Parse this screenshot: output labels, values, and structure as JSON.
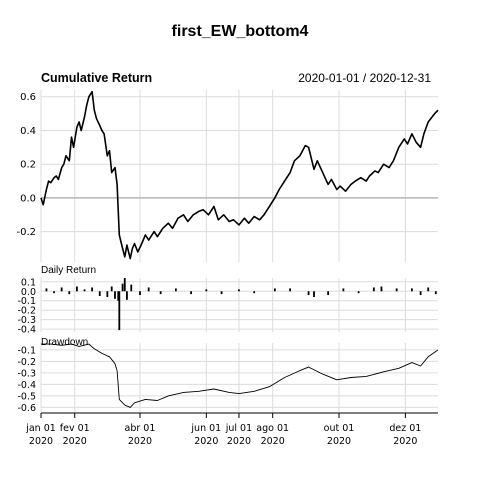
{
  "chart_data": {
    "type": "line",
    "title": "first_EW_bottom4",
    "period_label": "2020-01-01 / 2020-12-31",
    "x_ticks": [
      {
        "date": "2020-01-01",
        "month": "jan 01",
        "year": "2020"
      },
      {
        "date": "2020-02-01",
        "month": "fev 01",
        "year": "2020"
      },
      {
        "date": "2020-04-01",
        "month": "abr 01",
        "year": "2020"
      },
      {
        "date": "2020-06-01",
        "month": "jun 01",
        "year": "2020"
      },
      {
        "date": "2020-07-01",
        "month": "jul 01",
        "year": "2020"
      },
      {
        "date": "2020-08-01",
        "month": "ago 01",
        "year": "2020"
      },
      {
        "date": "2020-10-01",
        "month": "out 01",
        "year": "2020"
      },
      {
        "date": "2020-12-01",
        "month": "dez 01",
        "year": "2020"
      }
    ],
    "xlim": [
      "2020-01-01",
      "2020-12-31"
    ],
    "grid": true,
    "panels": [
      {
        "name": "Cumulative Return",
        "type": "line",
        "ylim": [
          -0.38,
          0.64
        ],
        "yticks": [
          0.6,
          0.4,
          0.2,
          0.0,
          -0.2
        ],
        "ytick_labels": [
          "0.6",
          "0.4",
          "0.2",
          "0.0",
          "-0.2"
        ],
        "series": [
          {
            "points": [
              [
                "2020-01-01",
                0.0
              ],
              [
                "2020-01-03",
                -0.04
              ],
              [
                "2020-01-06",
                0.05
              ],
              [
                "2020-01-08",
                0.1
              ],
              [
                "2020-01-10",
                0.09
              ],
              [
                "2020-01-13",
                0.12
              ],
              [
                "2020-01-15",
                0.13
              ],
              [
                "2020-01-17",
                0.11
              ],
              [
                "2020-01-20",
                0.18
              ],
              [
                "2020-01-22",
                0.2
              ],
              [
                "2020-01-24",
                0.25
              ],
              [
                "2020-01-27",
                0.22
              ],
              [
                "2020-01-29",
                0.36
              ],
              [
                "2020-01-31",
                0.3
              ],
              [
                "2020-02-03",
                0.42
              ],
              [
                "2020-02-05",
                0.45
              ],
              [
                "2020-02-07",
                0.4
              ],
              [
                "2020-02-10",
                0.48
              ],
              [
                "2020-02-12",
                0.55
              ],
              [
                "2020-02-14",
                0.6
              ],
              [
                "2020-02-17",
                0.63
              ],
              [
                "2020-02-19",
                0.52
              ],
              [
                "2020-02-21",
                0.47
              ],
              [
                "2020-02-24",
                0.43
              ],
              [
                "2020-02-26",
                0.4
              ],
              [
                "2020-02-28",
                0.38
              ],
              [
                "2020-03-02",
                0.25
              ],
              [
                "2020-03-04",
                0.28
              ],
              [
                "2020-03-06",
                0.15
              ],
              [
                "2020-03-09",
                0.18
              ],
              [
                "2020-03-11",
                0.08
              ],
              [
                "2020-03-13",
                -0.22
              ],
              [
                "2020-03-16",
                -0.3
              ],
              [
                "2020-03-18",
                -0.35
              ],
              [
                "2020-03-20",
                -0.28
              ],
              [
                "2020-03-23",
                -0.36
              ],
              [
                "2020-03-25",
                -0.3
              ],
              [
                "2020-03-27",
                -0.27
              ],
              [
                "2020-03-30",
                -0.32
              ],
              [
                "2020-04-02",
                -0.28
              ],
              [
                "2020-04-06",
                -0.22
              ],
              [
                "2020-04-09",
                -0.25
              ],
              [
                "2020-04-14",
                -0.2
              ],
              [
                "2020-04-17",
                -0.23
              ],
              [
                "2020-04-22",
                -0.18
              ],
              [
                "2020-04-27",
                -0.15
              ],
              [
                "2020-05-01",
                -0.18
              ],
              [
                "2020-05-06",
                -0.12
              ],
              [
                "2020-05-11",
                -0.1
              ],
              [
                "2020-05-15",
                -0.14
              ],
              [
                "2020-05-20",
                -0.1
              ],
              [
                "2020-05-25",
                -0.08
              ],
              [
                "2020-05-29",
                -0.07
              ],
              [
                "2020-06-03",
                -0.1
              ],
              [
                "2020-06-08",
                -0.05
              ],
              [
                "2020-06-12",
                -0.13
              ],
              [
                "2020-06-17",
                -0.1
              ],
              [
                "2020-06-22",
                -0.14
              ],
              [
                "2020-06-26",
                -0.13
              ],
              [
                "2020-07-01",
                -0.16
              ],
              [
                "2020-07-06",
                -0.12
              ],
              [
                "2020-07-10",
                -0.15
              ],
              [
                "2020-07-15",
                -0.11
              ],
              [
                "2020-07-20",
                -0.13
              ],
              [
                "2020-07-24",
                -0.1
              ],
              [
                "2020-07-29",
                -0.05
              ],
              [
                "2020-08-03",
                0.0
              ],
              [
                "2020-08-07",
                0.05
              ],
              [
                "2020-08-12",
                0.1
              ],
              [
                "2020-08-17",
                0.15
              ],
              [
                "2020-08-21",
                0.22
              ],
              [
                "2020-08-26",
                0.25
              ],
              [
                "2020-08-31",
                0.31
              ],
              [
                "2020-09-03",
                0.3
              ],
              [
                "2020-09-08",
                0.17
              ],
              [
                "2020-09-11",
                0.22
              ],
              [
                "2020-09-16",
                0.15
              ],
              [
                "2020-09-21",
                0.08
              ],
              [
                "2020-09-24",
                0.11
              ],
              [
                "2020-09-29",
                0.05
              ],
              [
                "2020-10-02",
                0.07
              ],
              [
                "2020-10-07",
                0.04
              ],
              [
                "2020-10-12",
                0.08
              ],
              [
                "2020-10-16",
                0.1
              ],
              [
                "2020-10-21",
                0.12
              ],
              [
                "2020-10-26",
                0.1
              ],
              [
                "2020-10-29",
                0.13
              ],
              [
                "2020-11-03",
                0.16
              ],
              [
                "2020-11-06",
                0.15
              ],
              [
                "2020-11-11",
                0.2
              ],
              [
                "2020-11-16",
                0.18
              ],
              [
                "2020-11-20",
                0.22
              ],
              [
                "2020-11-25",
                0.3
              ],
              [
                "2020-11-30",
                0.35
              ],
              [
                "2020-12-03",
                0.32
              ],
              [
                "2020-12-07",
                0.38
              ],
              [
                "2020-12-11",
                0.33
              ],
              [
                "2020-12-15",
                0.3
              ],
              [
                "2020-12-18",
                0.38
              ],
              [
                "2020-12-22",
                0.45
              ],
              [
                "2020-12-28",
                0.5
              ],
              [
                "2020-12-31",
                0.52
              ]
            ]
          }
        ]
      },
      {
        "name": "Daily Return",
        "type": "bar",
        "ylim": [
          -0.43,
          0.14
        ],
        "yticks": [
          0.1,
          0.0,
          -0.1,
          -0.2,
          -0.3,
          -0.4
        ],
        "ytick_labels": [
          "0.1",
          "0.0",
          "-0.1",
          "-0.2",
          "-0.3",
          "-0.4"
        ],
        "series": [
          {
            "points": [
              [
                "2020-01-06",
                0.03
              ],
              [
                "2020-01-13",
                -0.02
              ],
              [
                "2020-01-20",
                0.04
              ],
              [
                "2020-01-27",
                -0.03
              ],
              [
                "2020-02-03",
                0.05
              ],
              [
                "2020-02-10",
                0.02
              ],
              [
                "2020-02-17",
                0.04
              ],
              [
                "2020-02-24",
                -0.05
              ],
              [
                "2020-03-02",
                -0.06
              ],
              [
                "2020-03-06",
                0.05
              ],
              [
                "2020-03-09",
                -0.08
              ],
              [
                "2020-03-12",
                -0.1
              ],
              [
                "2020-03-13",
                -0.41
              ],
              [
                "2020-03-16",
                0.08
              ],
              [
                "2020-03-18",
                0.14
              ],
              [
                "2020-03-20",
                -0.09
              ],
              [
                "2020-03-24",
                0.07
              ],
              [
                "2020-04-01",
                -0.04
              ],
              [
                "2020-04-09",
                0.04
              ],
              [
                "2020-04-20",
                -0.03
              ],
              [
                "2020-05-04",
                0.03
              ],
              [
                "2020-05-18",
                -0.03
              ],
              [
                "2020-06-01",
                0.02
              ],
              [
                "2020-06-15",
                -0.03
              ],
              [
                "2020-07-01",
                0.02
              ],
              [
                "2020-07-15",
                -0.02
              ],
              [
                "2020-08-03",
                0.03
              ],
              [
                "2020-08-17",
                0.03
              ],
              [
                "2020-09-03",
                -0.04
              ],
              [
                "2020-09-08",
                -0.06
              ],
              [
                "2020-09-21",
                -0.04
              ],
              [
                "2020-10-05",
                0.03
              ],
              [
                "2020-10-19",
                -0.02
              ],
              [
                "2020-11-02",
                0.04
              ],
              [
                "2020-11-09",
                0.05
              ],
              [
                "2020-11-23",
                0.03
              ],
              [
                "2020-12-07",
                0.03
              ],
              [
                "2020-12-15",
                -0.04
              ],
              [
                "2020-12-22",
                0.04
              ],
              [
                "2020-12-29",
                -0.03
              ]
            ]
          }
        ]
      },
      {
        "name": "Drawdown",
        "type": "line",
        "ylim": [
          -0.64,
          -0.04
        ],
        "yticks": [
          -0.1,
          -0.2,
          -0.3,
          -0.4,
          -0.5,
          -0.6
        ],
        "ytick_labels": [
          "-0.1",
          "-0.2",
          "-0.3",
          "-0.4",
          "-0.5",
          "-0.6"
        ],
        "series": [
          {
            "points": [
              [
                "2020-01-01",
                -0.05
              ],
              [
                "2020-01-10",
                -0.05
              ],
              [
                "2020-01-20",
                -0.06
              ],
              [
                "2020-01-29",
                -0.05
              ],
              [
                "2020-02-05",
                -0.07
              ],
              [
                "2020-02-14",
                -0.05
              ],
              [
                "2020-02-19",
                -0.09
              ],
              [
                "2020-02-26",
                -0.13
              ],
              [
                "2020-03-04",
                -0.16
              ],
              [
                "2020-03-09",
                -0.22
              ],
              [
                "2020-03-11",
                -0.28
              ],
              [
                "2020-03-13",
                -0.53
              ],
              [
                "2020-03-18",
                -0.58
              ],
              [
                "2020-03-23",
                -0.6
              ],
              [
                "2020-03-27",
                -0.56
              ],
              [
                "2020-04-06",
                -0.53
              ],
              [
                "2020-04-17",
                -0.54
              ],
              [
                "2020-04-27",
                -0.5
              ],
              [
                "2020-05-11",
                -0.47
              ],
              [
                "2020-05-25",
                -0.46
              ],
              [
                "2020-06-08",
                -0.44
              ],
              [
                "2020-06-22",
                -0.47
              ],
              [
                "2020-07-01",
                -0.48
              ],
              [
                "2020-07-15",
                -0.46
              ],
              [
                "2020-07-29",
                -0.42
              ],
              [
                "2020-08-12",
                -0.34
              ],
              [
                "2020-08-26",
                -0.28
              ],
              [
                "2020-09-03",
                -0.25
              ],
              [
                "2020-09-16",
                -0.31
              ],
              [
                "2020-09-29",
                -0.36
              ],
              [
                "2020-10-12",
                -0.34
              ],
              [
                "2020-10-26",
                -0.33
              ],
              [
                "2020-11-11",
                -0.29
              ],
              [
                "2020-11-25",
                -0.26
              ],
              [
                "2020-12-07",
                -0.21
              ],
              [
                "2020-12-15",
                -0.24
              ],
              [
                "2020-12-22",
                -0.16
              ],
              [
                "2020-12-31",
                -0.1
              ]
            ]
          }
        ]
      }
    ]
  }
}
